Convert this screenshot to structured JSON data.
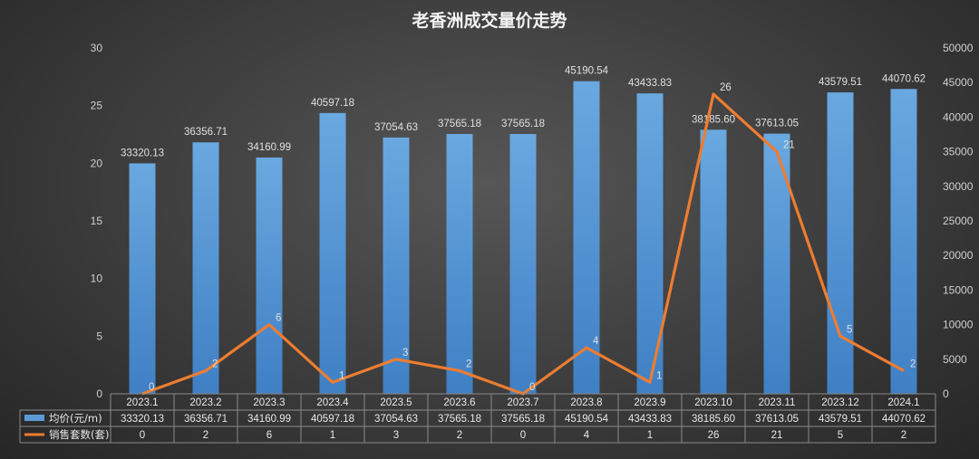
{
  "chart_data": {
    "type": "bar",
    "title": "老香洲成交量价走势",
    "categories": [
      "2023.1",
      "2023.2",
      "2023.3",
      "2023.4",
      "2023.5",
      "2023.6",
      "2023.7",
      "2023.8",
      "2023.9",
      "2023.10",
      "2023.11",
      "2023.12",
      "2024.1"
    ],
    "series": [
      {
        "name": "均价(元/m)",
        "type": "bar",
        "axis": "right",
        "values": [
          33320.13,
          36356.71,
          34160.99,
          40597.18,
          37054.63,
          37565.18,
          37565.18,
          45190.54,
          43433.83,
          38185.6,
          37613.05,
          43579.51,
          44070.62
        ],
        "labels": [
          "33320.13",
          "36356.71",
          "34160.99",
          "40597.18",
          "37054.63",
          "37565.18",
          "37565.18",
          "45190.54",
          "43433.83",
          "38185.60",
          "37613.05",
          "43579.51",
          "44070.62"
        ],
        "color": "#5b9bd5"
      },
      {
        "name": "销售套数(套)",
        "type": "line",
        "axis": "left",
        "values": [
          0,
          2,
          6,
          1,
          3,
          2,
          0,
          4,
          1,
          26,
          21,
          5,
          2
        ],
        "labels": [
          "0",
          "2",
          "6",
          "1",
          "3",
          "2",
          "0",
          "4",
          "1",
          "26",
          "21",
          "5",
          "2"
        ],
        "color": "#ed7d31"
      }
    ],
    "left_axis": {
      "min": 0,
      "max": 30,
      "ticks": [
        "0",
        "5",
        "10",
        "15",
        "20",
        "25",
        "30"
      ]
    },
    "right_axis": {
      "min": 0,
      "max": 50000,
      "ticks": [
        "0",
        "5000",
        "10000",
        "15000",
        "20000",
        "25000",
        "30000",
        "35000",
        "40000",
        "45000",
        "50000"
      ]
    },
    "grid": false,
    "legend": "data-table-bottom"
  }
}
